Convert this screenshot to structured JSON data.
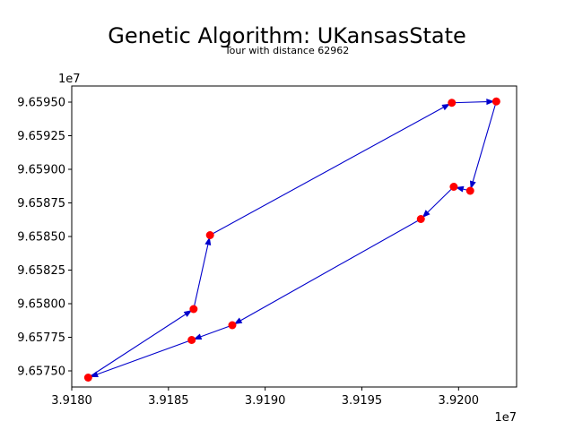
{
  "chart_data": {
    "type": "line",
    "title": "Genetic Algorithm: UKansasState",
    "subtitle": "Tour with distance 62962",
    "xlabel": "",
    "ylabel": "",
    "x_offset_label": "1e7",
    "y_offset_label": "1e7",
    "xlim": [
      39180000,
      39203000
    ],
    "ylim": [
      96596200,
      96573800
    ],
    "x_ticks": [
      39180000,
      39185000,
      39190000,
      39195000,
      39200000
    ],
    "x_tick_labels": [
      "3.9180",
      "3.9185",
      "3.9190",
      "3.9195",
      "3.9200"
    ],
    "y_ticks": [
      96575000,
      96577500,
      96580000,
      96582500,
      96585000,
      96587500,
      96590000,
      96592500,
      96595000
    ],
    "y_tick_labels": [
      "9.65750",
      "9.65775",
      "9.65800",
      "9.65825",
      "9.65850",
      "9.65875",
      "9.65900",
      "9.65925",
      "9.65950"
    ],
    "grid": false,
    "legend": "none",
    "point_color": "#ff0000",
    "line_color": "#0000cc",
    "series": [
      {
        "points": [
          {
            "x": 39180850,
            "y": 96574500
          },
          {
            "x": 39186300,
            "y": 96579600
          },
          {
            "x": 39187150,
            "y": 96585100
          },
          {
            "x": 39199650,
            "y": 96594950
          },
          {
            "x": 39201950,
            "y": 96595050
          },
          {
            "x": 39200600,
            "y": 96588400
          },
          {
            "x": 39199750,
            "y": 96588700
          },
          {
            "x": 39198050,
            "y": 96586300
          },
          {
            "x": 39188300,
            "y": 96578400
          },
          {
            "x": 39186200,
            "y": 96577300
          }
        ],
        "closed": true
      }
    ]
  }
}
